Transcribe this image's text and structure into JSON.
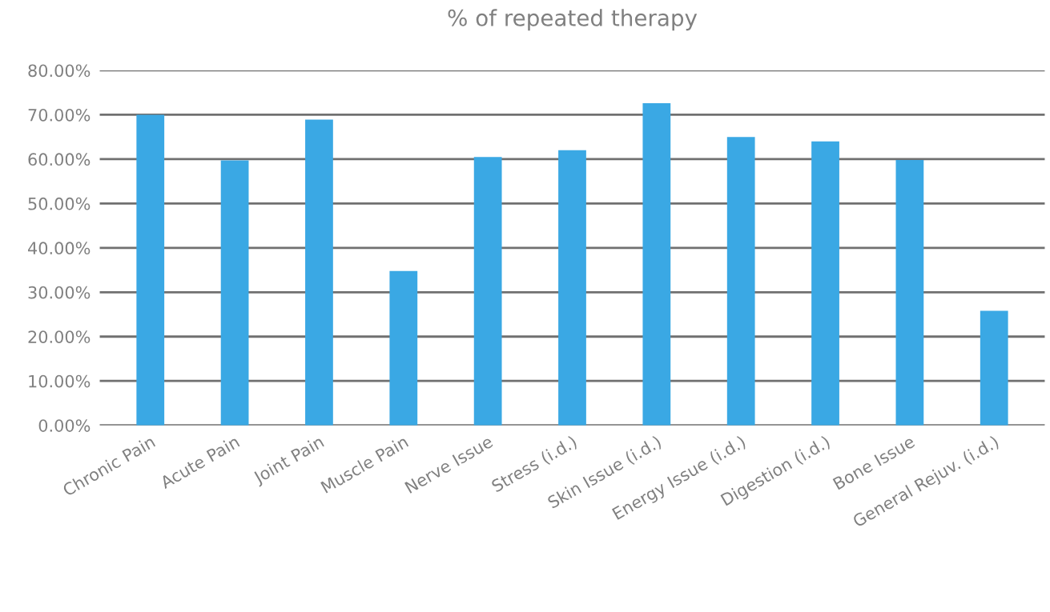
{
  "chart_data": {
    "type": "bar",
    "title": "% of repeated therapy",
    "categories": [
      "Chronic Pain",
      "Acute Pain",
      "Joint Pain",
      "Muscle Pain",
      "Nerve Issue",
      "Stress (i.d.)",
      "Skin Issue (i.d.)",
      "Energy Issue (i.d.)",
      "Digestion (i.d.)",
      "Bone Issue",
      "General Rejuv. (i.d.)"
    ],
    "values": [
      70,
      59.7,
      68.9,
      34.8,
      60.5,
      62,
      72.6,
      65,
      64,
      59.8,
      25.8
    ],
    "color": "#3aa8e4",
    "ylim": [
      0,
      80
    ],
    "yticks": [
      {
        "value": 0,
        "label": "0.00%"
      },
      {
        "value": 10,
        "label": "10.00%"
      },
      {
        "value": 20,
        "label": "20.00%"
      },
      {
        "value": 30,
        "label": "30.00%"
      },
      {
        "value": 40,
        "label": "40.00%"
      },
      {
        "value": 50,
        "label": "50.00%"
      },
      {
        "value": 60,
        "label": "60.00%"
      },
      {
        "value": 70,
        "label": "70.00%"
      },
      {
        "value": 80,
        "label": "80.00%"
      }
    ],
    "grid": "y"
  }
}
